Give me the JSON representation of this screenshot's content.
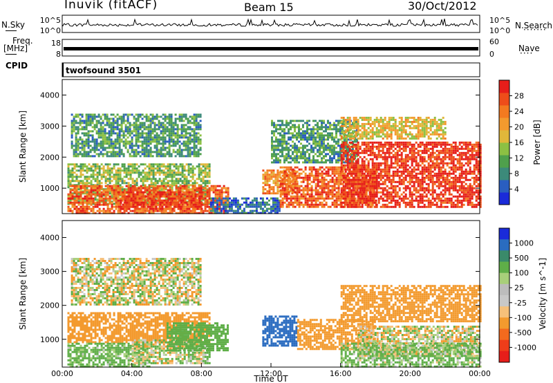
{
  "header": {
    "station": "Inuvik (fitACF)",
    "beam": "Beam 15",
    "date": "30/Oct/2012"
  },
  "panels": {
    "nsky_label": "N.Sky",
    "nsky_top": "10^5",
    "nsky_bottom": "10^0",
    "nsearch_label": "N.Search",
    "nsearch_top": "10^5",
    "nsearch_bottom": "10^0",
    "freq_label": "Freq.",
    "freq_unit": "[MHz]",
    "freq_top": "18",
    "freq_bottom": "8",
    "nave_label": "Nave",
    "nave_top": "60",
    "nave_bottom": "0",
    "cpid_label": "CPID",
    "cpid_value": "twofsound 3501"
  },
  "chart_data": [
    {
      "type": "heatmap",
      "name": "power",
      "ylabel": "Slant Range [km]",
      "ylim": [
        180,
        4500
      ],
      "yticks": [
        1000,
        2000,
        3000,
        4000
      ],
      "xlim": [
        0,
        24
      ],
      "colorbar": {
        "label": "Power [dB]",
        "range": [
          0,
          32
        ],
        "ticks": [
          4,
          8,
          12,
          16,
          20,
          24,
          28
        ],
        "colors": [
          "#1a2bd9",
          "#2a5ec0",
          "#3c8a7a",
          "#4fa04c",
          "#8cc043",
          "#e0b73a",
          "#f39a2e",
          "#f37a20",
          "#ee4d1a",
          "#e61e1a"
        ]
      },
      "echo_regions": [
        {
          "t": [
            0.3,
            8.5
          ],
          "r": [
            500,
            1800
          ],
          "level": 14
        },
        {
          "t": [
            0.3,
            9.5
          ],
          "r": [
            200,
            1100
          ],
          "level": 26
        },
        {
          "t": [
            3.2,
            8.0
          ],
          "r": [
            300,
            900
          ],
          "level": 28
        },
        {
          "t": [
            0.5,
            8.0
          ],
          "r": [
            2000,
            3400
          ],
          "level": 10
        },
        {
          "t": [
            8.5,
            12.5
          ],
          "r": [
            200,
            700
          ],
          "level": 6
        },
        {
          "t": [
            11.5,
            13.5
          ],
          "r": [
            800,
            1600
          ],
          "level": 22
        },
        {
          "t": [
            12.5,
            18.0
          ],
          "r": [
            400,
            1700
          ],
          "level": 26
        },
        {
          "t": [
            12.0,
            17.0
          ],
          "r": [
            1800,
            3200
          ],
          "level": 10
        },
        {
          "t": [
            16.0,
            24.0
          ],
          "r": [
            400,
            2500
          ],
          "level": 29
        },
        {
          "t": [
            16.0,
            22.0
          ],
          "r": [
            2600,
            3300
          ],
          "level": 18
        }
      ]
    },
    {
      "type": "heatmap",
      "name": "velocity",
      "ylabel": "Slant Range [km]",
      "xlabel": "Time UT",
      "ylim": [
        180,
        4500
      ],
      "yticks": [
        1000,
        2000,
        3000,
        4000
      ],
      "xlim": [
        0,
        24
      ],
      "xticks": [
        "00:00",
        "04:00",
        "08:00",
        "12:00",
        "16:00",
        "20:00",
        "00:00"
      ],
      "colorbar": {
        "label": "Velocity [m s^-1]",
        "ticks": [
          "1000",
          "500",
          "100",
          "25",
          "-25",
          "-100",
          "-500",
          "-1000"
        ],
        "colors": [
          "#1a2bd9",
          "#2a6cc0",
          "#3a8a6a",
          "#5fae48",
          "#a8cf7a",
          "#bcbcbc",
          "#c8c8c8",
          "#f6c07a",
          "#f39a2e",
          "#f36a1e",
          "#ee3d1a",
          "#e61e1a"
        ]
      },
      "echo_regions": [
        {
          "t": [
            0.3,
            8.5
          ],
          "r": [
            900,
            1800
          ],
          "level": -300
        },
        {
          "t": [
            0.3,
            5.0
          ],
          "r": [
            200,
            900
          ],
          "level": 200
        },
        {
          "t": [
            4.0,
            8.5
          ],
          "r": [
            300,
            1000
          ],
          "level": 50
        },
        {
          "t": [
            6.0,
            9.5
          ],
          "r": [
            700,
            1500
          ],
          "level": 300
        },
        {
          "t": [
            0.5,
            8.0
          ],
          "r": [
            2000,
            3400
          ],
          "level": 0
        },
        {
          "t": [
            11.5,
            13.5
          ],
          "r": [
            800,
            1700
          ],
          "level": 700
        },
        {
          "t": [
            13.5,
            18.0
          ],
          "r": [
            700,
            1600
          ],
          "level": -300
        },
        {
          "t": [
            17.0,
            24.0
          ],
          "r": [
            500,
            1400
          ],
          "level": 0
        },
        {
          "t": [
            16.0,
            24.0
          ],
          "r": [
            1500,
            2600
          ],
          "level": -300
        },
        {
          "t": [
            16.0,
            24.0
          ],
          "r": [
            200,
            900
          ],
          "level": 150
        }
      ]
    }
  ]
}
